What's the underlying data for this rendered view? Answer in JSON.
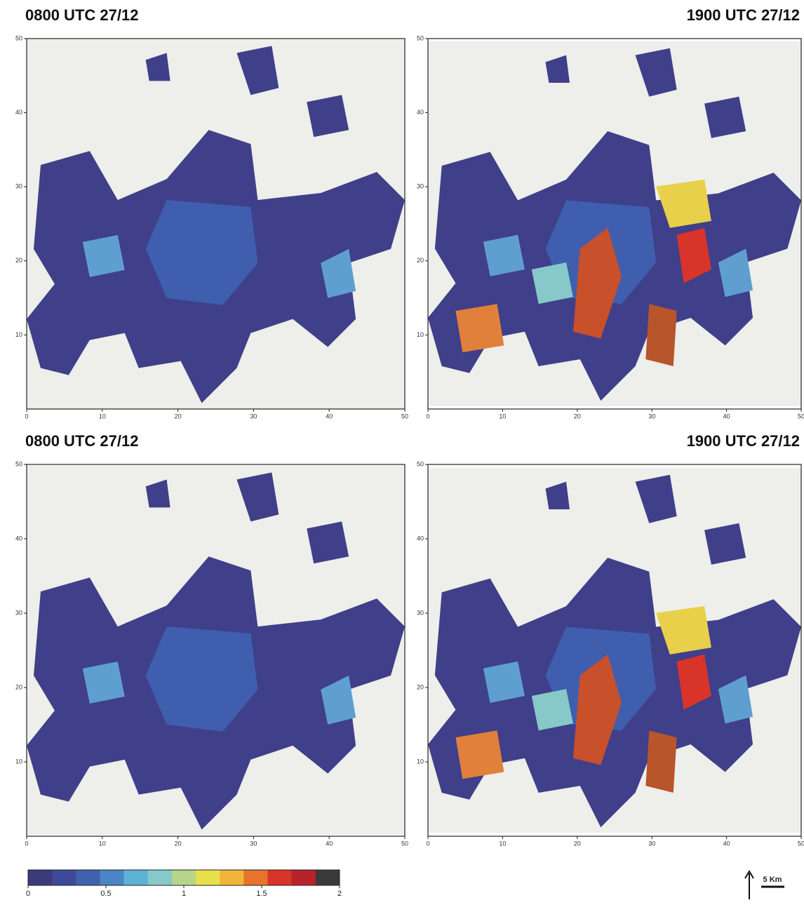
{
  "panels": [
    {
      "title": "0800 UTC 27/12"
    },
    {
      "title": "1900 UTC 27/12"
    },
    {
      "title": "0800 UTC 27/12"
    },
    {
      "title": "1900 UTC 27/12"
    }
  ],
  "axes": {
    "xlim": [
      0,
      50
    ],
    "ylim": [
      0,
      50
    ],
    "xticks": [
      0,
      10,
      20,
      30,
      40,
      50
    ],
    "yticks": [
      10,
      20,
      30,
      40,
      50
    ]
  },
  "colorbar": {
    "lim": [
      0,
      2
    ],
    "ticks": [
      0,
      0.5,
      1,
      1.5,
      2
    ],
    "colors": [
      "#3b3a7a",
      "#3d4a98",
      "#3f62b0",
      "#4a86c4",
      "#5fb2d6",
      "#86c9c8",
      "#b6d58a",
      "#e8e04a",
      "#f0b63c",
      "#e8742c",
      "#d8342a",
      "#b8232a",
      "#3a3a3a"
    ]
  },
  "scale_bar": {
    "label": "5 Km"
  }
}
